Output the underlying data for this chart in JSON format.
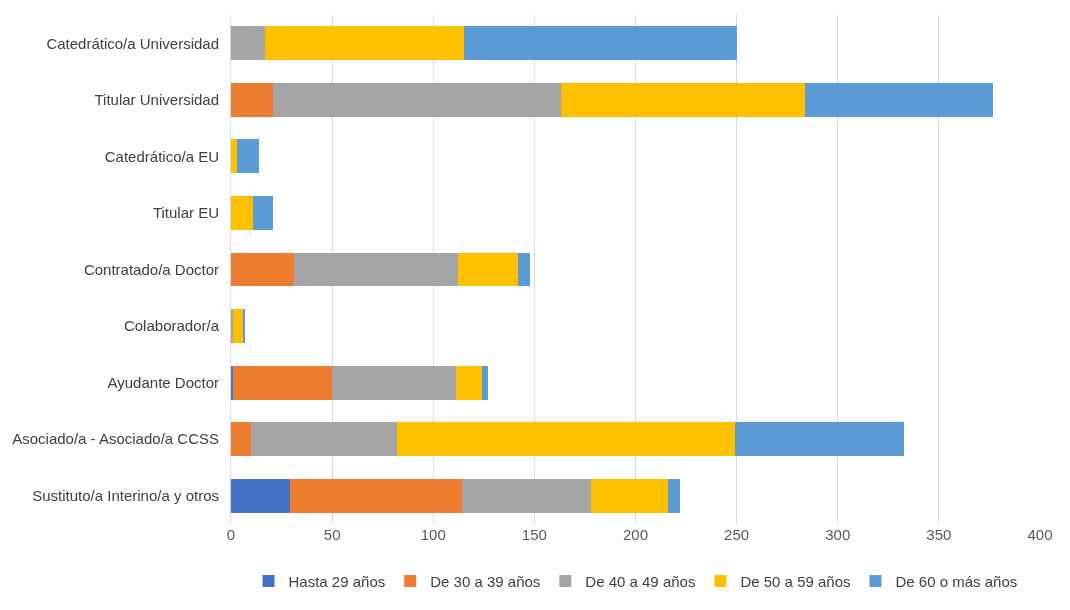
{
  "chart_data": {
    "type": "bar",
    "orientation": "horizontal",
    "stacked": true,
    "categories": [
      "Catedrático/a Universidad",
      "Titular Universidad",
      "Catedrático/a EU",
      "Titular EU",
      "Contratado/a Doctor",
      "Colaborador/a",
      "Ayudante Doctor",
      "Asociado/a - Asociado/a CCSS",
      "Sustituto/a Interino/a y otros"
    ],
    "series": [
      {
        "name": "Hasta 29 años",
        "color": "#4472c4",
        "values": [
          0,
          0,
          0,
          0,
          0,
          0,
          1,
          0,
          29
        ]
      },
      {
        "name": "De 30 a 39 años",
        "color": "#ed7d31",
        "values": [
          0,
          21,
          0,
          0,
          31,
          0,
          49,
          10,
          85
        ]
      },
      {
        "name": "De 40 a 49 años",
        "color": "#a5a5a5",
        "values": [
          17,
          142,
          0,
          0,
          81,
          1,
          61,
          72,
          64
        ]
      },
      {
        "name": "De 50 a 59 años",
        "color": "#ffc000",
        "values": [
          98,
          121,
          3,
          11,
          30,
          5,
          13,
          167,
          38
        ]
      },
      {
        "name": "De 60 o más años",
        "color": "#5b9bd5",
        "values": [
          135,
          93,
          11,
          10,
          6,
          1,
          3,
          84,
          6
        ]
      }
    ],
    "xlim": [
      0,
      400
    ],
    "xticks": [
      0,
      50,
      100,
      150,
      200,
      250,
      300,
      350,
      400
    ],
    "grid": "x",
    "legend": "bottom"
  }
}
